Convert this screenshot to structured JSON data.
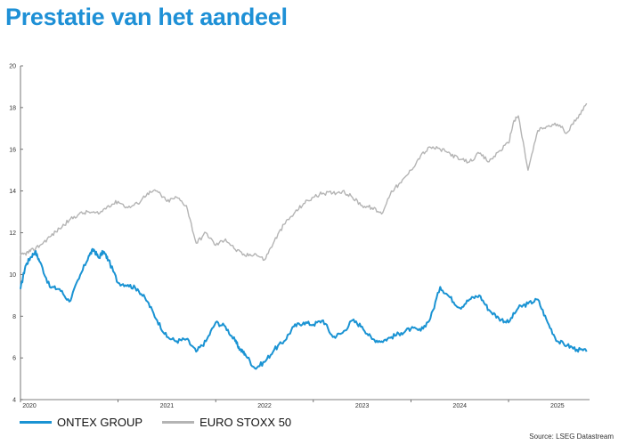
{
  "page_title": "Prestatie van het aandeel",
  "source": "Source: LSEG Datastream",
  "chart_data": {
    "type": "line",
    "title": "",
    "xlabel": "",
    "ylabel": "",
    "x_ticks": [
      "2020",
      "2021",
      "2022",
      "2023",
      "2024",
      "2025"
    ],
    "y_ticks": [
      4,
      6,
      8,
      10,
      12,
      14,
      16,
      18,
      20
    ],
    "xlim": [
      2020.0,
      2025.83
    ],
    "ylim": [
      4,
      20
    ],
    "grid": false,
    "legend": "bottom-left",
    "series": [
      {
        "name": "ONTEX GROUP",
        "color": "#1a93d3",
        "x": [
          2020.0,
          2020.05,
          2020.1,
          2020.15,
          2020.2,
          2020.3,
          2020.4,
          2020.5,
          2020.6,
          2020.7,
          2020.75,
          2020.8,
          2020.85,
          2020.9,
          2021.0,
          2021.1,
          2021.2,
          2021.3,
          2021.4,
          2021.5,
          2021.6,
          2021.7,
          2021.8,
          2021.9,
          2022.0,
          2022.1,
          2022.2,
          2022.25,
          2022.3,
          2022.4,
          2022.5,
          2022.6,
          2022.7,
          2022.8,
          2022.9,
          2023.0,
          2023.1,
          2023.2,
          2023.3,
          2023.4,
          2023.5,
          2023.6,
          2023.7,
          2023.8,
          2023.9,
          2024.0,
          2024.1,
          2024.2,
          2024.3,
          2024.4,
          2024.5,
          2024.6,
          2024.7,
          2024.8,
          2024.9,
          2025.0,
          2025.1,
          2025.2,
          2025.3,
          2025.4,
          2025.5,
          2025.6,
          2025.7,
          2025.8
        ],
        "values": [
          9.3,
          10.4,
          10.8,
          11.1,
          10.6,
          9.4,
          9.3,
          8.7,
          9.8,
          10.9,
          11.2,
          10.8,
          11.1,
          10.7,
          9.6,
          9.5,
          9.3,
          8.7,
          7.8,
          7.0,
          6.8,
          6.9,
          6.3,
          6.8,
          7.7,
          7.5,
          6.8,
          6.4,
          6.2,
          5.5,
          5.8,
          6.4,
          6.8,
          7.5,
          7.7,
          7.6,
          7.8,
          7.0,
          7.2,
          7.8,
          7.5,
          6.9,
          6.8,
          7.0,
          7.2,
          7.4,
          7.3,
          7.9,
          9.4,
          8.9,
          8.4,
          8.8,
          9.0,
          8.3,
          7.9,
          7.7,
          8.4,
          8.6,
          8.8,
          7.7,
          6.8,
          6.6,
          6.4,
          6.3
        ]
      },
      {
        "name": "EURO STOXX 50",
        "color": "#b4b4b4",
        "x": [
          2020.0,
          2020.05,
          2020.1,
          2020.2,
          2020.3,
          2020.4,
          2020.5,
          2020.6,
          2020.7,
          2020.8,
          2020.9,
          2021.0,
          2021.1,
          2021.2,
          2021.3,
          2021.4,
          2021.5,
          2021.6,
          2021.7,
          2021.8,
          2021.9,
          2022.0,
          2022.1,
          2022.2,
          2022.3,
          2022.4,
          2022.5,
          2022.6,
          2022.7,
          2022.8,
          2022.9,
          2023.0,
          2023.1,
          2023.2,
          2023.3,
          2023.4,
          2023.5,
          2023.6,
          2023.7,
          2023.8,
          2023.9,
          2024.0,
          2024.1,
          2024.2,
          2024.3,
          2024.4,
          2024.5,
          2024.6,
          2024.7,
          2024.8,
          2024.9,
          2025.0,
          2025.05,
          2025.1,
          2025.2,
          2025.3,
          2025.4,
          2025.5,
          2025.6,
          2025.7,
          2025.8
        ],
        "values": [
          10.9,
          11.0,
          11.1,
          11.4,
          11.8,
          12.2,
          12.6,
          12.9,
          13.0,
          12.9,
          13.3,
          13.5,
          13.2,
          13.4,
          13.9,
          14.0,
          13.5,
          13.7,
          13.3,
          11.5,
          12.0,
          11.4,
          11.7,
          11.2,
          10.9,
          11.0,
          10.7,
          11.6,
          12.4,
          12.9,
          13.4,
          13.7,
          13.9,
          13.9,
          14.0,
          13.7,
          13.3,
          13.2,
          12.9,
          14.0,
          14.4,
          15.0,
          15.7,
          16.1,
          16.0,
          15.8,
          15.5,
          15.4,
          15.8,
          15.4,
          15.9,
          16.3,
          17.3,
          17.6,
          15.0,
          16.9,
          17.1,
          17.2,
          16.8,
          17.5,
          18.2
        ]
      }
    ]
  }
}
